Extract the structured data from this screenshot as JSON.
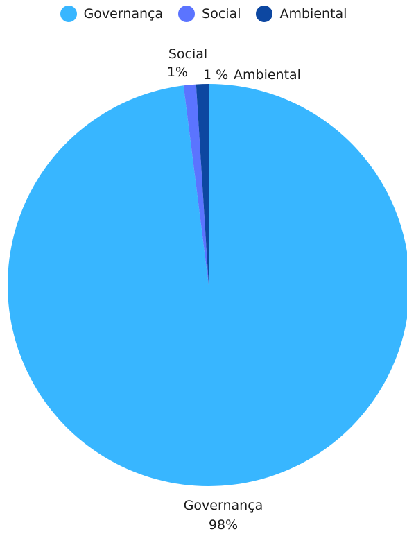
{
  "chart_data": {
    "type": "pie",
    "categories": [
      "Governança",
      "Social",
      "Ambiental"
    ],
    "values": [
      98,
      1,
      1
    ],
    "data_labels": [
      "98%",
      "1%",
      "1 %"
    ],
    "colors": [
      "#38b6ff",
      "#5b74ff",
      "#0d47a1"
    ],
    "title": "",
    "legend": {
      "placement": "top-center",
      "entries": [
        "Governança",
        "Social",
        "Ambiental"
      ]
    }
  }
}
